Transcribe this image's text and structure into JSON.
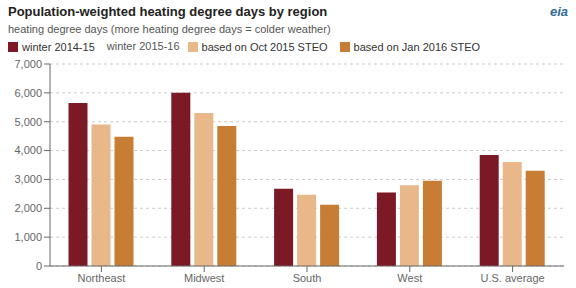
{
  "chart_data": {
    "type": "bar",
    "title": "Population-weighted heating degree days by region",
    "subtitle": "heating degree  days (more heating degree  days = colder weather)",
    "annotations": [
      "eia",
      "winter 2015-16"
    ],
    "categories": [
      "Northeast",
      "Midwest",
      "South",
      "West",
      "U.S. average"
    ],
    "series": [
      {
        "name": "winter 2014-15",
        "color": "#7b1a24",
        "values": [
          5650,
          6000,
          2680,
          2550,
          3850
        ]
      },
      {
        "name": "based on Oct 2015 STEO",
        "color": "#e8b88a",
        "values": [
          4900,
          5300,
          2470,
          2800,
          3600
        ]
      },
      {
        "name": "based on Jan 2016 STEO",
        "color": "#c87d35",
        "values": [
          4480,
          4850,
          2120,
          2950,
          3300
        ]
      }
    ],
    "ylim": [
      0,
      7000
    ],
    "yticks": [
      0,
      {
        "value": 1000,
        "label": "1,000"
      },
      {
        "value": 2000,
        "label": "2,000"
      },
      {
        "value": 3000,
        "label": "3,000"
      },
      {
        "value": 4000,
        "label": "4,000"
      },
      {
        "value": 5000,
        "label": "5,000"
      },
      {
        "value": 6000,
        "label": "6,000"
      },
      {
        "value": 7000,
        "label": "7,000"
      }
    ],
    "grid": true
  }
}
